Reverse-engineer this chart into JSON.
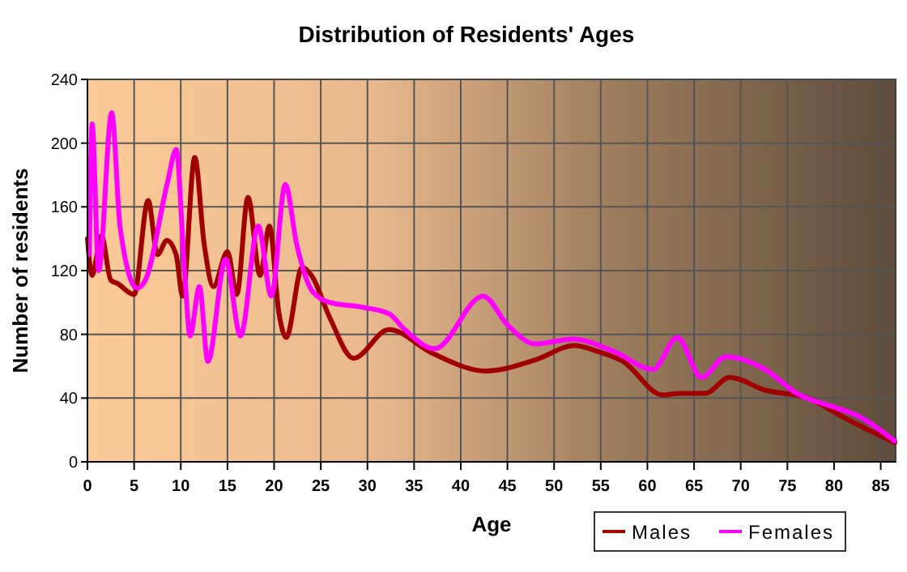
{
  "chart_data": {
    "type": "line",
    "title": "Distribution of Residents' Ages",
    "xlabel": "Age",
    "ylabel": "Number of residents",
    "series": [
      {
        "name": "Males",
        "color": "#a00000",
        "x": [
          0,
          0.5,
          1.5,
          2.5,
          3.2,
          5,
          6.5,
          7.5,
          8.5,
          9.5,
          10.2,
          11.5,
          12.5,
          13.5,
          15,
          16,
          17.2,
          18.5,
          19.5,
          20.5,
          21.3,
          23,
          24,
          26,
          28.5,
          32.3,
          37,
          42.7,
          48,
          52.2,
          54.8,
          57.4,
          61.6,
          63.6,
          66.2,
          68.8,
          72.6,
          77.2,
          81.3,
          86.5
        ],
        "values": [
          140,
          117,
          142,
          114,
          112,
          105,
          164,
          130,
          139,
          130,
          104,
          191,
          137,
          110,
          132,
          105,
          166,
          117,
          148,
          94,
          78,
          122,
          117,
          90,
          65,
          83,
          68,
          57,
          64,
          73,
          69,
          63,
          42,
          43,
          43,
          53,
          45,
          40,
          27,
          12
        ]
      },
      {
        "name": "Females",
        "color": "#ff00ff",
        "x": [
          0.2,
          0.5,
          1.2,
          2.6,
          3.5,
          5.3,
          6.2,
          8.6,
          9.5,
          10.4,
          11,
          12,
          12.9,
          14.8,
          16.4,
          18.3,
          19.7,
          21.2,
          22.4,
          24.1,
          26,
          29.5,
          32.3,
          34,
          37.2,
          42.4,
          45,
          48,
          52,
          56.5,
          60.6,
          63.2,
          65.8,
          68.4,
          72.6,
          76,
          80.7,
          82.5,
          86.5
        ],
        "values": [
          130,
          212,
          120,
          219,
          147,
          109,
          114,
          176,
          196,
          120,
          79,
          110,
          63,
          127,
          79,
          148,
          104,
          174,
          137,
          107,
          100,
          97,
          93,
          83,
          71,
          104,
          86,
          74,
          77,
          69,
          58,
          78,
          53,
          66,
          58,
          43,
          33,
          29,
          13
        ]
      }
    ],
    "xlim": [
      0,
      86.6
    ],
    "xticks": [
      0,
      5,
      10,
      15,
      20,
      25,
      30,
      35,
      40,
      45,
      50,
      55,
      60,
      65,
      70,
      75,
      80,
      85
    ],
    "ylim": [
      0,
      240
    ],
    "yticks": [
      0,
      40,
      80,
      120,
      160,
      200,
      240
    ],
    "grid": true,
    "legend": "bottom right"
  }
}
